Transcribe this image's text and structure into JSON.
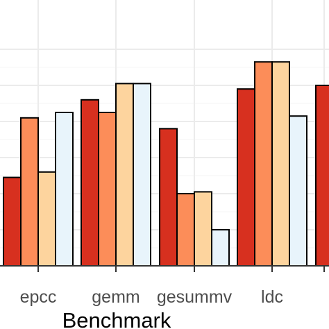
{
  "chart_data": {
    "type": "bar",
    "xlabel": "Benchmark",
    "categories": [
      "epcc",
      "gemm",
      "gesummv",
      "ldc"
    ],
    "series": [
      {
        "color": "#d7301f",
        "values": [
          0.49,
          0.92,
          0.76,
          0.98
        ]
      },
      {
        "color": "#fc8d59",
        "values": [
          0.82,
          0.85,
          0.4,
          1.13
        ]
      },
      {
        "color": "#fdd49e",
        "values": [
          0.52,
          1.01,
          0.41,
          1.13
        ]
      },
      {
        "color": "#e8f4fb",
        "values": [
          0.85,
          1.01,
          0.2,
          0.83
        ]
      }
    ],
    "partial_series": {
      "category": "",
      "values": [
        1.0
      ],
      "color": "#d7301f"
    },
    "ylim": [
      0,
      1.2
    ],
    "grid": true,
    "panel_background": "#ffffff",
    "grid_color": "#ebebeb",
    "bar_outline": "#000000"
  }
}
